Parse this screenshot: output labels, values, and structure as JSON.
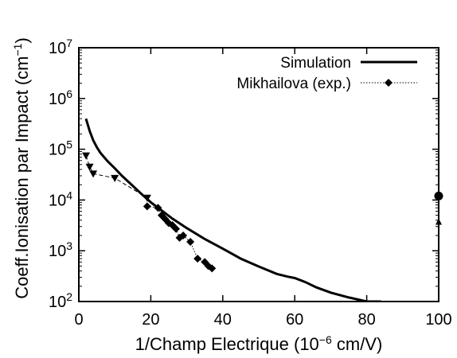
{
  "chart_data": {
    "type": "line",
    "title": "",
    "xlabel": "1/Champ Electrique (10^-6 cm/V)",
    "ylabel": "Coeff.Ionisation par Impact (cm^-1)",
    "xlabel_parts": {
      "main": "1/Champ Electrique (10",
      "exp": "−6",
      "tail": " cm/V)"
    },
    "ylabel_parts": {
      "main": "Coeff.Ionisation par Impact (cm",
      "exp": "−1",
      "tail": ")"
    },
    "xlim": [
      0,
      100
    ],
    "ylim": [
      100,
      10000000
    ],
    "yscale": "log",
    "grid": false,
    "legend_position": "top-right",
    "x_ticks": [
      "0",
      "20",
      "40",
      "60",
      "80",
      "100"
    ],
    "y_ticks": [
      {
        "value": 100,
        "base": "10",
        "exp": "2"
      },
      {
        "value": 1000,
        "base": "10",
        "exp": "3"
      },
      {
        "value": 10000,
        "base": "10",
        "exp": "4"
      },
      {
        "value": 100000,
        "base": "10",
        "exp": "5"
      },
      {
        "value": 1000000,
        "base": "10",
        "exp": "6"
      },
      {
        "value": 10000000,
        "base": "10",
        "exp": "7"
      }
    ],
    "series": [
      {
        "name": "Simulation",
        "style": "line",
        "color": "#000000",
        "x": [
          2,
          3,
          4,
          5,
          6,
          8,
          10,
          12,
          15,
          18,
          20,
          23,
          26,
          30,
          35,
          40,
          45,
          50,
          55,
          58,
          60,
          63,
          66,
          70,
          75,
          80,
          84
        ],
        "y": [
          400000,
          230000,
          150000,
          110000,
          85000,
          58000,
          42000,
          30000,
          19000,
          12000,
          9000,
          6200,
          4300,
          2800,
          1700,
          1100,
          700,
          490,
          350,
          310,
          290,
          240,
          190,
          150,
          120,
          100,
          100
        ]
      },
      {
        "name": "Mikhailova (exp.)",
        "style": "dotted-diamond",
        "color": "#000000",
        "x": [
          19,
          22,
          23,
          24,
          25,
          26,
          27,
          28,
          29,
          31,
          33,
          35,
          36,
          37
        ],
        "y": [
          7500,
          7000,
          5000,
          4200,
          3500,
          3200,
          2700,
          1800,
          2000,
          1500,
          700,
          600,
          500,
          450
        ]
      },
      {
        "name": "",
        "style": "dashed-triangle-down",
        "color": "#000000",
        "x": [
          2,
          3,
          4,
          10,
          19
        ],
        "y": [
          75000,
          45000,
          33000,
          27000,
          11000
        ]
      },
      {
        "name": "",
        "style": "circle",
        "color": "#000000",
        "x": [
          100
        ],
        "y": [
          12000
        ]
      },
      {
        "name": "",
        "style": "triangle-up",
        "color": "#000000",
        "x": [
          100
        ],
        "y": [
          3700
        ]
      }
    ]
  }
}
